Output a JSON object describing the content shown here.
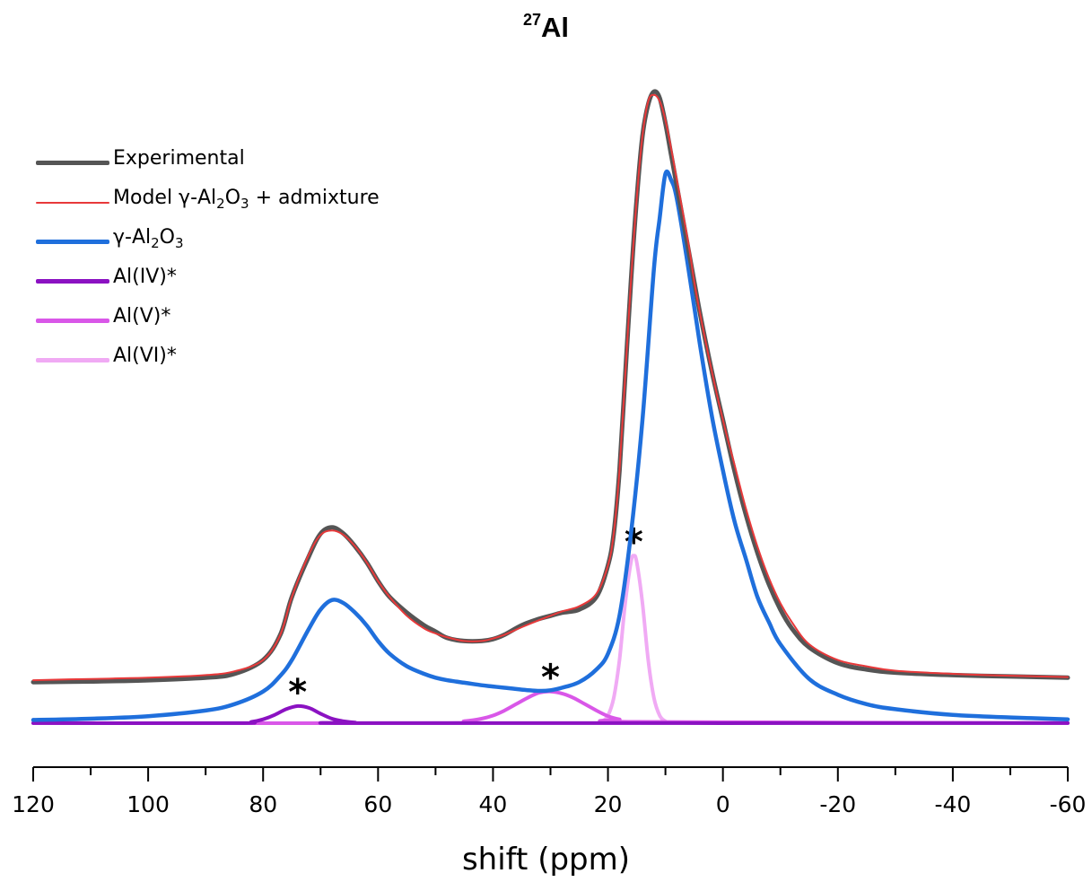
{
  "chart_data": {
    "type": "line",
    "title_sup": "27",
    "title_main": "Al",
    "xlabel": "shift (ppm)",
    "ylabel": "",
    "xlim": [
      120,
      -60
    ],
    "x_reversed": true,
    "x_ticks": [
      120,
      100,
      80,
      60,
      40,
      20,
      0,
      -20,
      -40,
      -60
    ],
    "x_tick_labels": [
      "120",
      "100",
      "80",
      "60",
      "40",
      "20",
      "0",
      "-20",
      "-40",
      "-60"
    ],
    "y_ticks_shown": false,
    "grid": false,
    "legend_position": "top-left",
    "series": [
      {
        "key": "experimental",
        "name": "Experimental",
        "color": "#555555",
        "x": [
          120,
          110,
          100,
          90,
          85,
          80,
          77,
          75,
          72,
          70,
          68,
          66,
          64,
          62,
          60,
          58,
          55,
          52,
          50,
          48,
          45,
          42,
          40,
          38,
          35,
          32,
          30,
          28,
          25,
          22,
          20,
          19,
          18,
          17,
          16,
          15,
          14,
          13,
          12,
          11,
          10,
          9,
          8,
          6,
          5,
          4,
          2,
          0,
          -2,
          -4,
          -6,
          -8,
          -10,
          -12,
          -15,
          -20,
          -25,
          -30,
          -40,
          -50,
          -60
        ],
        "y": [
          0.065,
          0.066,
          0.068,
          0.072,
          0.078,
          0.1,
          0.14,
          0.2,
          0.265,
          0.3,
          0.31,
          0.3,
          0.28,
          0.255,
          0.225,
          0.2,
          0.175,
          0.155,
          0.145,
          0.135,
          0.13,
          0.13,
          0.133,
          0.14,
          0.155,
          0.165,
          0.17,
          0.175,
          0.18,
          0.2,
          0.25,
          0.3,
          0.4,
          0.55,
          0.7,
          0.83,
          0.93,
          0.98,
          1.0,
          0.99,
          0.95,
          0.9,
          0.85,
          0.75,
          0.7,
          0.65,
          0.56,
          0.48,
          0.4,
          0.33,
          0.27,
          0.22,
          0.18,
          0.15,
          0.12,
          0.095,
          0.085,
          0.08,
          0.076,
          0.074,
          0.072
        ]
      },
      {
        "key": "model",
        "name": "Model γ-Al₂O₃ + admixture",
        "color": "#e8393a",
        "x": [
          120,
          110,
          100,
          90,
          85,
          80,
          77,
          75,
          72,
          70,
          68,
          66,
          64,
          62,
          60,
          58,
          55,
          52,
          50,
          48,
          45,
          42,
          40,
          38,
          35,
          32,
          30,
          28,
          25,
          22,
          20,
          19,
          18,
          17,
          16,
          15,
          14,
          13,
          12,
          11,
          10,
          9,
          8,
          6,
          5,
          4,
          2,
          0,
          -2,
          -4,
          -6,
          -8,
          -10,
          -12,
          -15,
          -20,
          -25,
          -30,
          -40,
          -50,
          -60
        ],
        "y": [
          0.068,
          0.07,
          0.072,
          0.076,
          0.082,
          0.1,
          0.14,
          0.2,
          0.268,
          0.298,
          0.305,
          0.298,
          0.28,
          0.255,
          0.225,
          0.2,
          0.17,
          0.15,
          0.142,
          0.136,
          0.13,
          0.13,
          0.134,
          0.14,
          0.152,
          0.163,
          0.17,
          0.177,
          0.185,
          0.205,
          0.25,
          0.3,
          0.4,
          0.55,
          0.7,
          0.83,
          0.93,
          0.985,
          0.995,
          0.985,
          0.955,
          0.91,
          0.86,
          0.76,
          0.7,
          0.65,
          0.56,
          0.48,
          0.41,
          0.34,
          0.28,
          0.23,
          0.19,
          0.16,
          0.125,
          0.1,
          0.09,
          0.083,
          0.078,
          0.075,
          0.073
        ]
      },
      {
        "key": "gamma",
        "name": "γ-Al₂O₃",
        "color": "#1f6fdc",
        "x": [
          120,
          110,
          100,
          90,
          85,
          80,
          77,
          75,
          72,
          70,
          68,
          66,
          64,
          62,
          60,
          58,
          55,
          52,
          50,
          48,
          45,
          42,
          40,
          38,
          35,
          32,
          30,
          28,
          25,
          22,
          20,
          18,
          16,
          14,
          12,
          11,
          10,
          9,
          8,
          6,
          4,
          2,
          0,
          -2,
          -4,
          -6,
          -8,
          -10,
          -15,
          -20,
          -25,
          -30,
          -40,
          -50,
          -60
        ],
        "y": [
          0.005,
          0.007,
          0.011,
          0.02,
          0.03,
          0.05,
          0.075,
          0.1,
          0.15,
          0.18,
          0.195,
          0.19,
          0.175,
          0.155,
          0.13,
          0.11,
          0.09,
          0.078,
          0.072,
          0.068,
          0.064,
          0.06,
          0.058,
          0.056,
          0.053,
          0.051,
          0.052,
          0.056,
          0.065,
          0.085,
          0.11,
          0.17,
          0.3,
          0.48,
          0.72,
          0.8,
          0.87,
          0.86,
          0.83,
          0.72,
          0.6,
          0.49,
          0.4,
          0.32,
          0.26,
          0.2,
          0.16,
          0.125,
          0.07,
          0.045,
          0.03,
          0.022,
          0.013,
          0.009,
          0.006
        ]
      },
      {
        "key": "al4",
        "name": "Al(IV)*",
        "color": "#8b12c2",
        "x": [
          120,
          85,
          82,
          80,
          78,
          76,
          74,
          72,
          70,
          68,
          66,
          64,
          60,
          -60
        ],
        "y": [
          0.0,
          0.0,
          0.002,
          0.006,
          0.013,
          0.022,
          0.027,
          0.024,
          0.015,
          0.007,
          0.003,
          0.001,
          0.0,
          0.0
        ],
        "star_label": "*"
      },
      {
        "key": "al5",
        "name": "Al(V)*",
        "color": "#d957e8",
        "x": [
          120,
          50,
          45,
          42,
          40,
          38,
          36,
          34,
          32,
          30,
          28,
          26,
          24,
          22,
          20,
          18,
          15,
          -60
        ],
        "y": [
          0.0,
          0.0,
          0.003,
          0.007,
          0.012,
          0.02,
          0.03,
          0.04,
          0.048,
          0.05,
          0.047,
          0.04,
          0.03,
          0.02,
          0.011,
          0.006,
          0.002,
          0.0
        ],
        "star_label": "*"
      },
      {
        "key": "al6",
        "name": "Al(VI)*",
        "color": "#f0aaf4",
        "x": [
          120,
          22,
          21,
          20,
          19,
          18,
          17,
          16,
          15.5,
          15,
          14,
          13,
          12,
          11,
          10,
          9,
          -60
        ],
        "y": [
          0.0,
          0.0,
          0.003,
          0.012,
          0.04,
          0.1,
          0.19,
          0.255,
          0.265,
          0.255,
          0.19,
          0.1,
          0.04,
          0.012,
          0.003,
          0.0,
          0.0
        ],
        "star_label": "*"
      }
    ],
    "ylim": [
      -0.02,
      1.06
    ]
  }
}
